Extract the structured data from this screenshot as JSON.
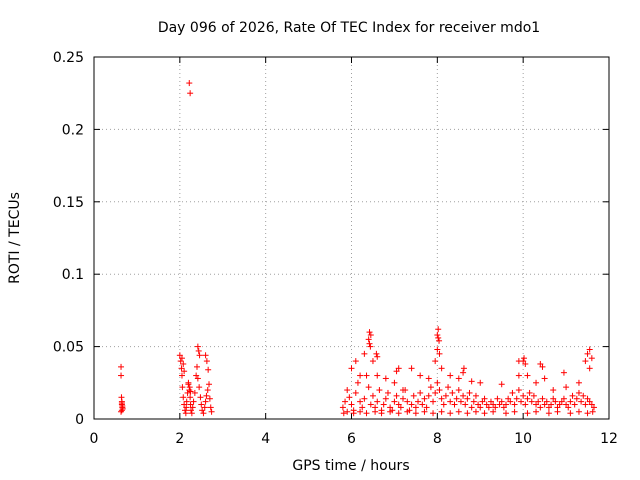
{
  "chart_data": {
    "type": "scatter",
    "title": "Day 096 of 2026, Rate Of TEC Index for receiver mdo1",
    "xlabel": "GPS time / hours",
    "ylabel": "ROTI / TECUs",
    "xlim": [
      0,
      12
    ],
    "ylim": [
      0,
      0.25
    ],
    "xticks": [
      0,
      2,
      4,
      6,
      8,
      10,
      12
    ],
    "xtick_labels": [
      "0",
      "2",
      "4",
      "6",
      "8",
      "10",
      "12"
    ],
    "yticks": [
      0,
      0.05,
      0.1,
      0.15,
      0.2,
      0.25
    ],
    "ytick_labels": [
      "0",
      "0.05",
      "0.1",
      "0.15",
      "0.2",
      "0.25"
    ],
    "grid": true,
    "marker": "+",
    "color": "#ff0000",
    "series": [
      {
        "name": "ROTI",
        "x": [
          0.63,
          0.63,
          0.64,
          0.65,
          0.65,
          0.66,
          0.66,
          0.67,
          0.65,
          0.65,
          0.63,
          2.0,
          2.02,
          2.04,
          2.05,
          2.06,
          2.08,
          2.1,
          2.12,
          2.14,
          2.15,
          2.16,
          2.18,
          2.2,
          2.22,
          2.24,
          2.25,
          2.26,
          2.28,
          2.3,
          2.32,
          2.35,
          2.38,
          2.4,
          2.42,
          2.45,
          2.48,
          2.5,
          2.52,
          2.55,
          2.58,
          2.6,
          2.62,
          2.65,
          2.68,
          2.7,
          2.72,
          2.74,
          2.05,
          2.08,
          2.1,
          2.2,
          2.23,
          2.25,
          2.42,
          2.44,
          2.46,
          2.6,
          2.63,
          2.66,
          2.22,
          2.24,
          5.8,
          5.85,
          5.9,
          5.95,
          6.0,
          6.05,
          6.1,
          6.15,
          6.2,
          6.25,
          6.3,
          6.35,
          6.4,
          6.45,
          6.5,
          6.55,
          6.6,
          6.65,
          6.7,
          6.75,
          6.8,
          6.85,
          6.9,
          6.95,
          7.0,
          7.05,
          7.1,
          7.15,
          7.2,
          7.25,
          7.3,
          7.35,
          7.4,
          7.45,
          7.5,
          7.55,
          7.6,
          7.65,
          7.7,
          7.75,
          7.8,
          7.85,
          7.9,
          7.95,
          8.0,
          8.05,
          8.1,
          8.15,
          8.2,
          8.25,
          8.3,
          8.35,
          8.4,
          8.45,
          8.5,
          8.55,
          8.6,
          8.65,
          8.7,
          8.75,
          8.8,
          8.85,
          8.9,
          8.95,
          9.0,
          9.05,
          9.1,
          9.15,
          9.2,
          9.25,
          9.3,
          9.35,
          9.4,
          9.45,
          9.5,
          9.55,
          9.6,
          9.65,
          9.7,
          9.75,
          9.8,
          9.85,
          9.9,
          9.95,
          10.0,
          10.05,
          10.1,
          10.15,
          10.2,
          10.25,
          10.3,
          10.35,
          10.4,
          10.45,
          10.5,
          10.55,
          10.6,
          10.65,
          10.7,
          10.75,
          10.8,
          10.85,
          10.9,
          10.95,
          11.0,
          11.05,
          11.1,
          11.15,
          11.2,
          11.25,
          11.3,
          11.35,
          11.4,
          11.45,
          11.5,
          11.55,
          11.6,
          11.65,
          6.0,
          6.1,
          6.2,
          6.3,
          6.4,
          6.42,
          6.45,
          6.5,
          6.6,
          6.8,
          7.0,
          7.2,
          7.4,
          7.6,
          7.8,
          7.95,
          8.0,
          8.02,
          8.05,
          8.1,
          8.3,
          8.5,
          8.6,
          8.8,
          9.0,
          9.5,
          9.9,
          10.0,
          10.02,
          10.05,
          10.1,
          10.3,
          10.5,
          10.7,
          11.0,
          11.3,
          11.45,
          11.5,
          11.55,
          11.6,
          5.82,
          5.9,
          6.05,
          6.2,
          6.35,
          6.55,
          6.7,
          6.9,
          7.1,
          7.3,
          7.5,
          7.7,
          7.9,
          8.1,
          8.3,
          8.5,
          8.7,
          8.9,
          9.1,
          9.3,
          9.6,
          9.8,
          10.1,
          10.3,
          10.6,
          10.8,
          11.1,
          11.3,
          11.5,
          11.62,
          6.42,
          6.44,
          8.0,
          8.02,
          8.04,
          7.05,
          7.1,
          8.62,
          9.9,
          10.4,
          10.45,
          11.55,
          10.95,
          6.58,
          6.6
        ],
        "y": [
          0.036,
          0.03,
          0.015,
          0.011,
          0.01,
          0.009,
          0.008,
          0.007,
          0.012,
          0.006,
          0.005,
          0.044,
          0.04,
          0.035,
          0.03,
          0.022,
          0.015,
          0.01,
          0.006,
          0.004,
          0.008,
          0.012,
          0.018,
          0.024,
          0.02,
          0.015,
          0.01,
          0.006,
          0.004,
          0.008,
          0.012,
          0.018,
          0.03,
          0.036,
          0.028,
          0.022,
          0.015,
          0.01,
          0.006,
          0.004,
          0.008,
          0.012,
          0.016,
          0.02,
          0.024,
          0.014,
          0.008,
          0.005,
          0.042,
          0.038,
          0.033,
          0.025,
          0.022,
          0.019,
          0.05,
          0.047,
          0.044,
          0.044,
          0.04,
          0.034,
          0.232,
          0.225,
          0.008,
          0.012,
          0.02,
          0.015,
          0.01,
          0.006,
          0.018,
          0.025,
          0.012,
          0.008,
          0.014,
          0.03,
          0.022,
          0.01,
          0.016,
          0.008,
          0.012,
          0.02,
          0.006,
          0.01,
          0.014,
          0.018,
          0.008,
          0.006,
          0.012,
          0.016,
          0.01,
          0.008,
          0.014,
          0.02,
          0.012,
          0.006,
          0.01,
          0.016,
          0.008,
          0.012,
          0.018,
          0.01,
          0.014,
          0.008,
          0.016,
          0.022,
          0.012,
          0.018,
          0.025,
          0.02,
          0.014,
          0.01,
          0.016,
          0.022,
          0.012,
          0.018,
          0.01,
          0.014,
          0.02,
          0.012,
          0.016,
          0.01,
          0.014,
          0.018,
          0.008,
          0.012,
          0.016,
          0.01,
          0.008,
          0.012,
          0.014,
          0.01,
          0.008,
          0.012,
          0.01,
          0.008,
          0.014,
          0.01,
          0.012,
          0.008,
          0.01,
          0.014,
          0.012,
          0.018,
          0.01,
          0.014,
          0.02,
          0.012,
          0.016,
          0.01,
          0.014,
          0.018,
          0.012,
          0.016,
          0.01,
          0.012,
          0.008,
          0.014,
          0.01,
          0.012,
          0.008,
          0.01,
          0.014,
          0.012,
          0.008,
          0.01,
          0.012,
          0.014,
          0.01,
          0.008,
          0.012,
          0.016,
          0.01,
          0.014,
          0.018,
          0.012,
          0.016,
          0.01,
          0.014,
          0.012,
          0.01,
          0.008,
          0.035,
          0.04,
          0.03,
          0.045,
          0.055,
          0.06,
          0.058,
          0.04,
          0.03,
          0.028,
          0.025,
          0.02,
          0.035,
          0.03,
          0.028,
          0.04,
          0.048,
          0.062,
          0.045,
          0.035,
          0.03,
          0.028,
          0.032,
          0.026,
          0.025,
          0.024,
          0.03,
          0.04,
          0.042,
          0.038,
          0.03,
          0.025,
          0.028,
          0.02,
          0.022,
          0.025,
          0.04,
          0.045,
          0.048,
          0.042,
          0.004,
          0.005,
          0.004,
          0.005,
          0.004,
          0.005,
          0.004,
          0.005,
          0.004,
          0.005,
          0.004,
          0.005,
          0.004,
          0.005,
          0.004,
          0.005,
          0.004,
          0.005,
          0.004,
          0.005,
          0.004,
          0.005,
          0.004,
          0.005,
          0.004,
          0.005,
          0.004,
          0.005,
          0.004,
          0.005,
          0.052,
          0.05,
          0.058,
          0.056,
          0.054,
          0.033,
          0.035,
          0.035,
          0.04,
          0.038,
          0.036,
          0.035,
          0.032,
          0.045,
          0.043
        ]
      }
    ]
  }
}
